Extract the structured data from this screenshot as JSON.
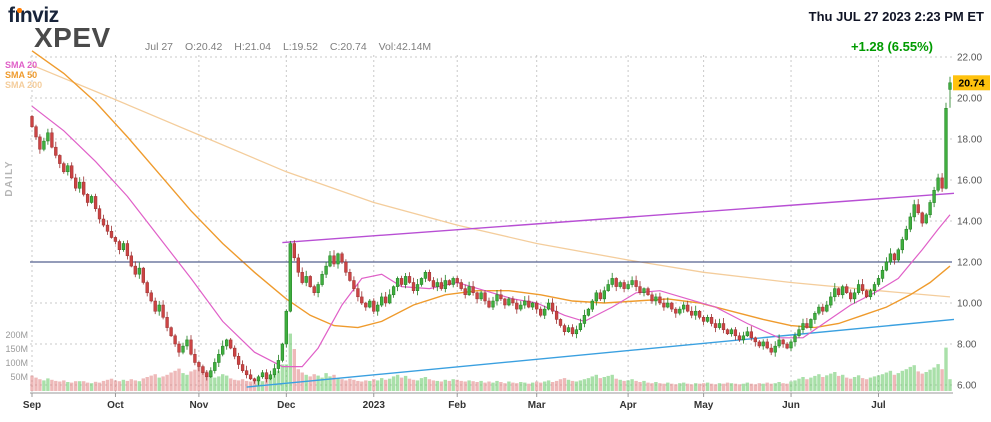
{
  "header": {
    "brand": "finviz",
    "datetime": "Thu JUL 27 2023 2:23 PM ET",
    "ticker": "XPEV",
    "quote": {
      "date": "Jul 27",
      "open": "O:20.42",
      "high": "H:21.04",
      "low": "L:19.52",
      "close": "C:20.74",
      "volume": "Vol:42.14M"
    },
    "change": "+1.28 (6.55%)",
    "change_color": "#009b00"
  },
  "legend": {
    "sma20": {
      "label": "SMA 20",
      "color": "#e060c8"
    },
    "sma50": {
      "label": "SMA 50",
      "color": "#ef9b2d"
    },
    "sma200": {
      "label": "SMA 200",
      "color": "#f4cd9c"
    }
  },
  "side_label": "DAILY",
  "chart_data": {
    "type": "candlestick",
    "timeframe": "daily",
    "title": "XPEV daily candlestick chart with volume, SMA 20/50/200 and trendlines",
    "price_axis": {
      "ticks": [
        6,
        8,
        10,
        12,
        14,
        16,
        18,
        20,
        22
      ],
      "labels": [
        "6.00",
        "8.00",
        "10.00",
        "12.00",
        "14.00",
        "16.00",
        "18.00",
        "20.00",
        "22.00"
      ]
    },
    "volume_axis": [
      {
        "label": "200M",
        "value": 200
      },
      {
        "label": "150M",
        "value": 150
      },
      {
        "label": "100M",
        "value": 100
      },
      {
        "label": "50M",
        "value": 50
      }
    ],
    "months": [
      {
        "label": "Sep",
        "day": 0
      },
      {
        "label": "Oct",
        "day": 21
      },
      {
        "label": "Nov",
        "day": 42
      },
      {
        "label": "Dec",
        "day": 64
      },
      {
        "label": "2023",
        "day": 86
      },
      {
        "label": "Feb",
        "day": 107
      },
      {
        "label": "Mar",
        "day": 127
      },
      {
        "label": "Apr",
        "day": 150
      },
      {
        "label": "May",
        "day": 169
      },
      {
        "label": "Jun",
        "day": 191
      },
      {
        "label": "Jul",
        "day": 213
      }
    ],
    "closes": [
      18.6,
      18.1,
      17.5,
      17.9,
      18.3,
      17.6,
      17.2,
      16.8,
      16.4,
      16.7,
      16.1,
      15.6,
      15.9,
      15.3,
      14.9,
      15.2,
      14.6,
      14.1,
      13.8,
      13.5,
      13.2,
      13.0,
      12.6,
      12.9,
      12.3,
      11.8,
      11.4,
      11.7,
      11.0,
      10.5,
      10.1,
      9.6,
      9.9,
      9.3,
      8.8,
      8.4,
      8.0,
      7.6,
      7.9,
      8.2,
      7.5,
      7.1,
      6.9,
      6.6,
      6.4,
      6.7,
      7.1,
      7.5,
      7.9,
      8.2,
      7.8,
      7.4,
      7.0,
      6.7,
      6.5,
      6.3,
      6.2,
      6.4,
      6.6,
      6.3,
      6.5,
      6.8,
      7.2,
      8.0,
      9.6,
      12.9,
      12.2,
      11.5,
      11.0,
      11.3,
      10.8,
      10.5,
      10.9,
      11.4,
      11.8,
      12.3,
      11.9,
      12.4,
      12.0,
      11.5,
      11.1,
      10.7,
      10.3,
      10.0,
      9.8,
      10.1,
      9.6,
      9.9,
      10.3,
      10.0,
      10.4,
      10.8,
      11.2,
      10.9,
      11.3,
      11.0,
      10.6,
      10.9,
      11.2,
      11.5,
      11.1,
      10.8,
      11.0,
      10.7,
      11.1,
      10.9,
      11.2,
      11.0,
      10.7,
      10.4,
      10.8,
      10.5,
      10.2,
      10.5,
      10.1,
      9.8,
      10.1,
      10.4,
      10.2,
      9.9,
      10.2,
      10.0,
      9.7,
      9.9,
      10.1,
      9.8,
      10.0,
      9.7,
      9.4,
      9.7,
      10.0,
      9.6,
      9.2,
      8.9,
      8.6,
      8.8,
      8.5,
      8.7,
      9.0,
      9.4,
      9.7,
      10.1,
      10.5,
      10.2,
      10.6,
      10.9,
      11.2,
      10.8,
      11.0,
      10.7,
      10.9,
      11.1,
      10.8,
      10.5,
      10.7,
      10.4,
      10.1,
      10.3,
      10.0,
      9.8,
      10.0,
      9.7,
      9.5,
      9.7,
      9.9,
      9.6,
      9.4,
      9.6,
      9.3,
      9.1,
      9.3,
      9.0,
      8.8,
      9.0,
      8.7,
      8.5,
      8.7,
      8.4,
      8.2,
      8.4,
      8.6,
      8.3,
      8.1,
      7.9,
      8.1,
      7.8,
      7.6,
      7.9,
      8.2,
      8.0,
      7.8,
      8.1,
      8.4,
      8.7,
      9.0,
      8.8,
      9.2,
      9.5,
      9.8,
      9.6,
      9.9,
      10.3,
      10.7,
      10.4,
      10.8,
      10.5,
      10.2,
      10.5,
      10.9,
      10.6,
      10.3,
      10.6,
      10.9,
      11.2,
      11.6,
      12.0,
      12.4,
      12.1,
      12.6,
      13.1,
      13.6,
      14.2,
      14.8,
      14.4,
      13.9,
      14.3,
      14.9,
      15.5,
      16.1,
      15.6,
      19.5,
      20.74
    ],
    "volumes_m": [
      55,
      48,
      42,
      38,
      45,
      40,
      36,
      34,
      38,
      32,
      30,
      35,
      35,
      35,
      30,
      28,
      33,
      30,
      36,
      40,
      44,
      38,
      35,
      40,
      36,
      42,
      38,
      35,
      45,
      50,
      55,
      60,
      48,
      52,
      58,
      66,
      72,
      80,
      64,
      58,
      70,
      76,
      88,
      88,
      70,
      56,
      48,
      52,
      60,
      55,
      45,
      40,
      38,
      42,
      36,
      34,
      40,
      38,
      35,
      44,
      50,
      58,
      72,
      95,
      95,
      205,
      150,
      78,
      66,
      58,
      52,
      60,
      55,
      48,
      64,
      52,
      58,
      46,
      42,
      38,
      44,
      40,
      36,
      34,
      38,
      36,
      42,
      38,
      46,
      40,
      44,
      52,
      58,
      48,
      54,
      44,
      40,
      38,
      46,
      50,
      42,
      38,
      36,
      34,
      40,
      36,
      42,
      40,
      36,
      34,
      38,
      35,
      32,
      36,
      30,
      34,
      30,
      36,
      32,
      28,
      34,
      30,
      28,
      32,
      30,
      26,
      30,
      34,
      30,
      34,
      38,
      32,
      36,
      42,
      46,
      40,
      36,
      34,
      38,
      42,
      46,
      52,
      58,
      46,
      50,
      54,
      58,
      44,
      40,
      36,
      38,
      42,
      36,
      32,
      36,
      30,
      28,
      32,
      28,
      26,
      30,
      26,
      24,
      28,
      30,
      26,
      24,
      28,
      26,
      28,
      30,
      26,
      24,
      28,
      26,
      30,
      28,
      26,
      24,
      26,
      30,
      26,
      24,
      28,
      26,
      30,
      26,
      28,
      32,
      28,
      26,
      34,
      38,
      44,
      50,
      42,
      48,
      54,
      60,
      50,
      56,
      62,
      68,
      54,
      58,
      48,
      44,
      50,
      56,
      46,
      42,
      48,
      52,
      56,
      60,
      66,
      72,
      58,
      64,
      72,
      78,
      86,
      92,
      70,
      62,
      68,
      76,
      84,
      96,
      78,
      155,
      42
    ],
    "last_candle": {
      "open": 20.42,
      "high": 21.04,
      "low": 19.52,
      "close": 20.74
    },
    "current_price": {
      "label": "20.74",
      "value": 20.74,
      "badge_color": "#ffc20e",
      "text_color": "#000000"
    },
    "sma20_points": [
      [
        0,
        19.6
      ],
      [
        8,
        18.4
      ],
      [
        16,
        16.9
      ],
      [
        24,
        15.2
      ],
      [
        32,
        13.2
      ],
      [
        40,
        11.2
      ],
      [
        48,
        9.1
      ],
      [
        56,
        7.6
      ],
      [
        63,
        6.9
      ],
      [
        68,
        6.9
      ],
      [
        72,
        7.8
      ],
      [
        78,
        9.9
      ],
      [
        83,
        11.2
      ],
      [
        88,
        11.4
      ],
      [
        93,
        10.8
      ],
      [
        100,
        10.7
      ],
      [
        107,
        11.0
      ],
      [
        114,
        10.6
      ],
      [
        121,
        10.2
      ],
      [
        127,
        10.0
      ],
      [
        134,
        9.4
      ],
      [
        139,
        9.1
      ],
      [
        146,
        9.8
      ],
      [
        152,
        10.5
      ],
      [
        158,
        10.6
      ],
      [
        165,
        10.2
      ],
      [
        172,
        9.8
      ],
      [
        180,
        9.0
      ],
      [
        188,
        8.3
      ],
      [
        194,
        8.3
      ],
      [
        200,
        9.1
      ],
      [
        206,
        9.9
      ],
      [
        212,
        10.5
      ],
      [
        218,
        11.2
      ],
      [
        224,
        12.6
      ],
      [
        228,
        13.6
      ],
      [
        231,
        14.3
      ]
    ],
    "sma50_points": [
      [
        0,
        22.3
      ],
      [
        8,
        21.2
      ],
      [
        16,
        19.8
      ],
      [
        24,
        18.1
      ],
      [
        32,
        16.3
      ],
      [
        40,
        14.5
      ],
      [
        48,
        12.9
      ],
      [
        56,
        11.5
      ],
      [
        64,
        10.2
      ],
      [
        70,
        9.4
      ],
      [
        76,
        8.9
      ],
      [
        82,
        8.8
      ],
      [
        88,
        9.1
      ],
      [
        96,
        9.9
      ],
      [
        104,
        10.4
      ],
      [
        112,
        10.6
      ],
      [
        120,
        10.6
      ],
      [
        128,
        10.4
      ],
      [
        136,
        10.1
      ],
      [
        144,
        10.0
      ],
      [
        152,
        10.1
      ],
      [
        160,
        10.2
      ],
      [
        168,
        10.0
      ],
      [
        176,
        9.6
      ],
      [
        184,
        9.2
      ],
      [
        191,
        8.9
      ],
      [
        197,
        8.8
      ],
      [
        203,
        9.0
      ],
      [
        209,
        9.4
      ],
      [
        215,
        9.8
      ],
      [
        221,
        10.4
      ],
      [
        226,
        11.0
      ],
      [
        231,
        11.8
      ]
    ],
    "sma200_points": [
      [
        0,
        21.6
      ],
      [
        20,
        20.0
      ],
      [
        42,
        18.2
      ],
      [
        64,
        16.4
      ],
      [
        86,
        14.9
      ],
      [
        107,
        13.8
      ],
      [
        127,
        12.9
      ],
      [
        150,
        12.1
      ],
      [
        169,
        11.5
      ],
      [
        191,
        11.0
      ],
      [
        213,
        10.6
      ],
      [
        231,
        10.3
      ]
    ],
    "trendlines": [
      {
        "name": "resistance-trendline",
        "color": "#b84fd4",
        "from": [
          63,
          12.95
        ],
        "to": [
          232,
          15.35
        ]
      },
      {
        "name": "support-trendline",
        "color": "#3aa0e0",
        "from": [
          54,
          5.9
        ],
        "to": [
          232,
          9.2
        ]
      },
      {
        "name": "horizontal-level",
        "color": "#55608f",
        "price": 12.0
      }
    ],
    "colors": {
      "up": "#3fae3f",
      "up_stroke": "#1e7d1e",
      "down": "#cc4444",
      "down_stroke": "#993030",
      "vol_up": "#63c763",
      "vol_down": "#e07f7f",
      "grid": "#c9c9c9",
      "axis": "#999999",
      "price_label": "#555555",
      "vol_label": "#999999",
      "month_label": "#333333"
    }
  }
}
